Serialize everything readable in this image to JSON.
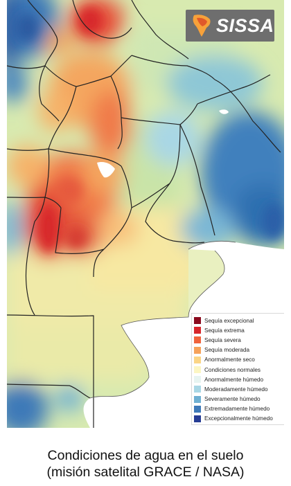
{
  "logo": {
    "text": "SISSA"
  },
  "legend": {
    "items": [
      {
        "label": "Sequía excepcional",
        "color": "#8b0a1e"
      },
      {
        "label": "Sequía extrema",
        "color": "#d7262b"
      },
      {
        "label": "Sequía severa",
        "color": "#f0633c"
      },
      {
        "label": "Sequía moderada",
        "color": "#f6a25a"
      },
      {
        "label": "Anormalmente seco",
        "color": "#fbd586"
      },
      {
        "label": "Condiciones normales",
        "color": "#fcf6c3"
      },
      {
        "label": "Anormalmente húmedo",
        "color": "#e7f4f1"
      },
      {
        "label": "Moderadamente húmedo",
        "color": "#a9d7e5"
      },
      {
        "label": "Severamente húmedo",
        "color": "#6fb0d2"
      },
      {
        "label": "Extremadamente húmedo",
        "color": "#3e79b8"
      },
      {
        "label": "Excepcionalmente húmedo",
        "color": "#263c94"
      }
    ]
  },
  "caption": {
    "line1": "Condiciones de agua en el suelo",
    "line2": "(misión satelital GRACE / NASA)"
  }
}
